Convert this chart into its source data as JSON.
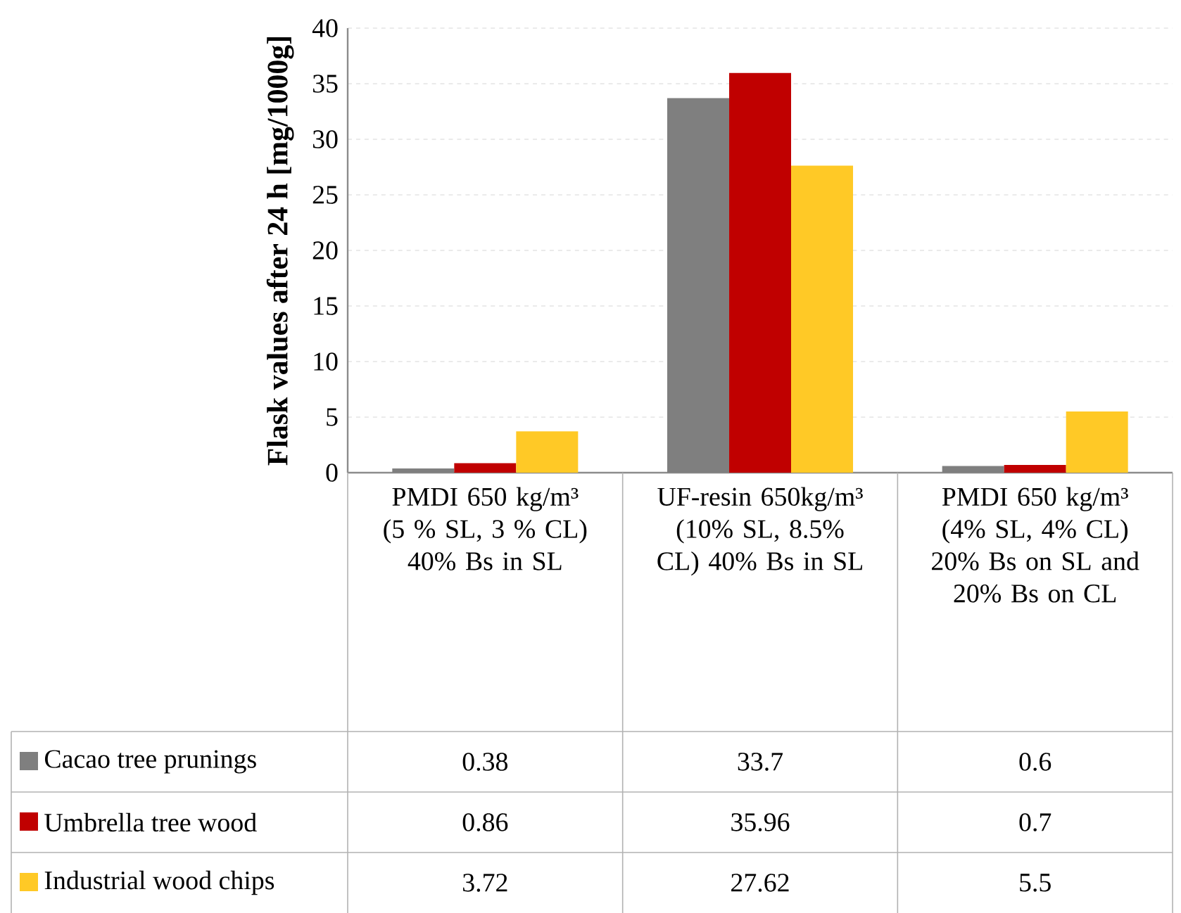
{
  "chart_data": {
    "type": "bar",
    "ylabel": "Flask values after 24 h [mg/1000g]",
    "categories": [
      "PMDI 650 kg/m³ (5 % SL, 3 % CL) 40% Bs in SL",
      "UF-resin 650kg/m³ (10% SL, 8.5% CL) 40% Bs in SL",
      "PMDI 650 kg/m³ (4% SL, 4% CL) 20% Bs on SL and 20% Bs on CL"
    ],
    "series": [
      {
        "name": "Cacao tree prunings",
        "color": "#7f7f7f",
        "values": [
          0.38,
          33.7,
          0.6
        ]
      },
      {
        "name": "Umbrella tree wood",
        "color": "#c00000",
        "values": [
          0.86,
          35.96,
          0.7
        ]
      },
      {
        "name": "Industrial wood chips",
        "color": "#ffc926",
        "values": [
          3.72,
          27.62,
          5.5
        ]
      }
    ],
    "ylim": [
      0,
      40
    ],
    "yticks": [
      0,
      5,
      10,
      15,
      20,
      25,
      30,
      35,
      40
    ],
    "grid": "y",
    "legend": "bottom",
    "data_labels": true
  }
}
